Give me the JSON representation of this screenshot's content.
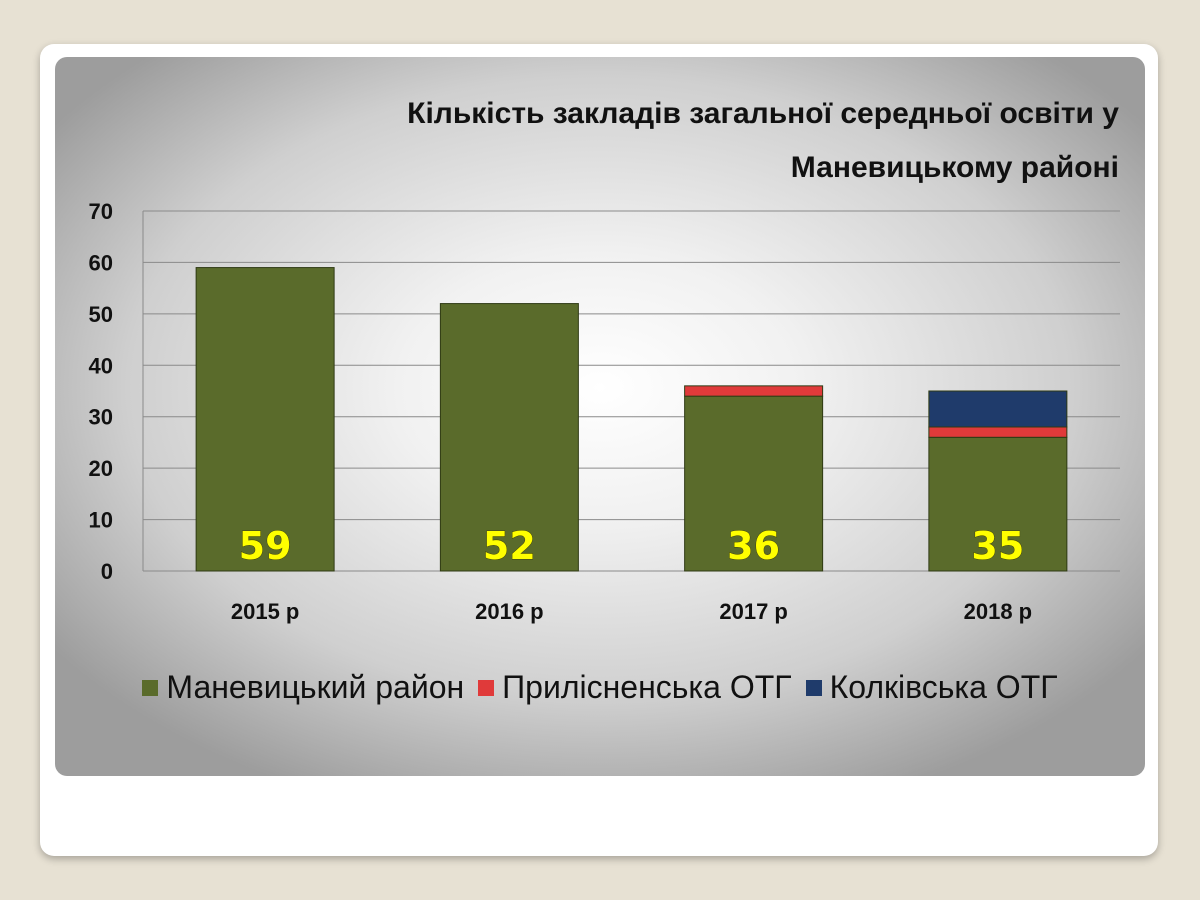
{
  "chart_data": {
    "type": "bar",
    "stacked": true,
    "title": "Кількість закладів загальної середньої освіти у Маневицькому районі",
    "title_lines": [
      "Кількість закладів загальної середньої освіти у",
      "Маневицькому районі"
    ],
    "categories": [
      "2015 р",
      "2016 р",
      "2017 р",
      "2018 р"
    ],
    "series": [
      {
        "name": "Маневицький район",
        "values": [
          59,
          52,
          34,
          26
        ],
        "color": "#5a6b2b"
      },
      {
        "name": "Прилісненська ОТГ",
        "values": [
          0,
          0,
          2,
          2
        ],
        "color": "#e03a3a"
      },
      {
        "name": "Колківська ОТГ",
        "values": [
          0,
          0,
          0,
          7
        ],
        "color": "#1f3b6b"
      }
    ],
    "data_labels": [
      "59",
      "52",
      "36",
      "35"
    ],
    "yticks": [
      "0",
      "10",
      "20",
      "30",
      "40",
      "50",
      "60",
      "70"
    ],
    "ylim": [
      0,
      70
    ],
    "grid": true,
    "legend_position": "bottom",
    "xlabel": "",
    "ylabel": ""
  }
}
